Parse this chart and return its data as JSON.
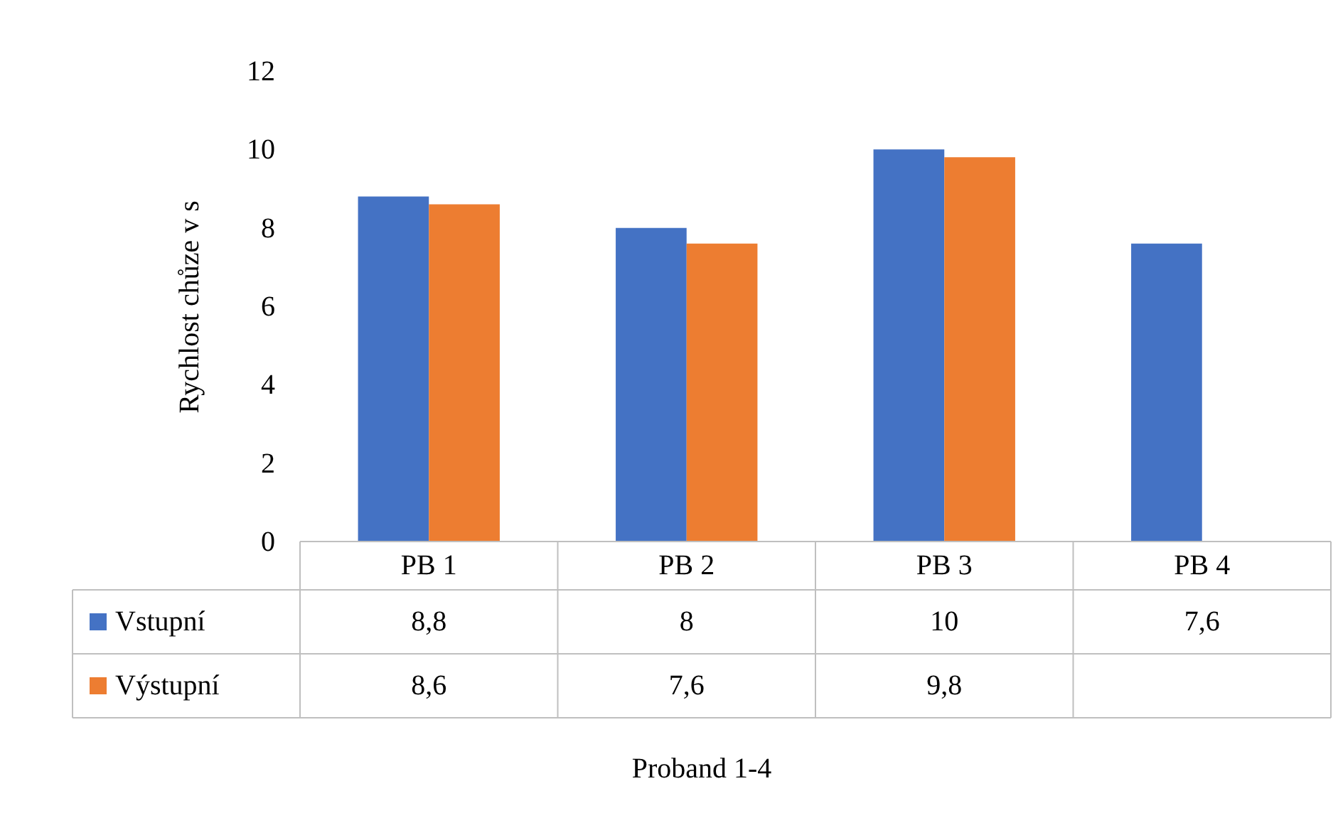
{
  "chart_data": {
    "type": "bar",
    "annotations": [
      "Proband 1-4"
    ],
    "ylabel": "Rychlost chůze v s",
    "categories": [
      "PB 1",
      "PB 2",
      "PB 3",
      "PB 4"
    ],
    "series": [
      {
        "name": "Vstupní",
        "color": "#4472c4",
        "values": [
          8.8,
          8,
          10,
          7.6
        ],
        "value_labels": [
          "8,8",
          "8",
          "10",
          "7,6"
        ]
      },
      {
        "name": "Výstupní",
        "color": "#ed7d31",
        "values": [
          8.6,
          7.6,
          9.8,
          null
        ],
        "value_labels": [
          "8,6",
          "7,6",
          "9,8",
          null
        ]
      }
    ],
    "legend": "bottom left",
    "ylim": [
      0,
      12
    ],
    "yticks": [
      0,
      2,
      4,
      6,
      8,
      10,
      12
    ]
  }
}
